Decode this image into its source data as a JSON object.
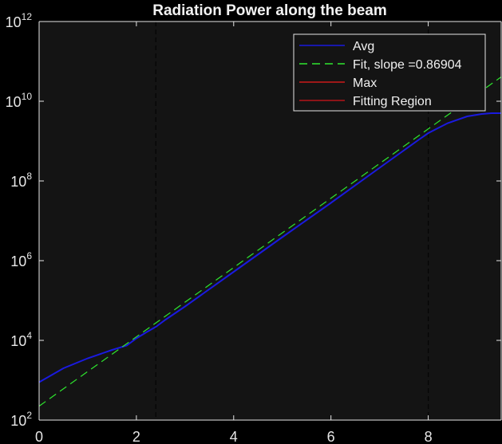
{
  "chart_data": {
    "type": "line",
    "title": "Radiation Power along the beam",
    "xlabel": "",
    "ylabel": "",
    "xlim": [
      0,
      9.5
    ],
    "ylim_log10": [
      2,
      12
    ],
    "yscale": "log",
    "x_ticks": [
      "0",
      "2",
      "4",
      "6",
      "8"
    ],
    "x_tick_values": [
      0,
      2,
      4,
      6,
      8
    ],
    "y_ticks": [
      {
        "base": "10",
        "exp": "2",
        "value": 2
      },
      {
        "base": "10",
        "exp": "4",
        "value": 4
      },
      {
        "base": "10",
        "exp": "6",
        "value": 6
      },
      {
        "base": "10",
        "exp": "8",
        "value": 8
      },
      {
        "base": "10",
        "exp": "10",
        "value": 10
      },
      {
        "base": "10",
        "exp": "12",
        "value": 12
      }
    ],
    "fitting_region_x": [
      2.4,
      8.0
    ],
    "legend_position": "top-right",
    "colors": {
      "background": "#000000",
      "axes_bg": "#141414",
      "axis": "#e6e6e6",
      "avg": "#1a1adf",
      "fit": "#2ee62e",
      "max": "#cc1a1a",
      "fitting_region": "#b3141a",
      "region_lines": "#050505"
    },
    "series": [
      {
        "name": "Avg",
        "style": "solid",
        "x": [
          0,
          0.5,
          1.0,
          1.5,
          1.8,
          2.0,
          2.2,
          2.4,
          2.6,
          3.0,
          4.0,
          5.0,
          6.0,
          7.0,
          7.8,
          8.0,
          8.4,
          8.8,
          9.1,
          9.3,
          9.5
        ],
        "log10_y": [
          2.95,
          3.3,
          3.55,
          3.76,
          3.87,
          4.05,
          4.2,
          4.34,
          4.52,
          4.85,
          5.72,
          6.59,
          7.45,
          8.33,
          9.03,
          9.2,
          9.45,
          9.62,
          9.68,
          9.7,
          9.7
        ]
      },
      {
        "name": "Fit, slope =0.86904",
        "style": "dashed",
        "x": [
          0,
          9.5
        ],
        "log10_y": [
          2.35,
          10.61
        ]
      },
      {
        "name": "Max",
        "style": "solid",
        "x": [],
        "log10_y": []
      },
      {
        "name": "Fitting Region",
        "style": "solid",
        "x": [],
        "log10_y": []
      }
    ]
  }
}
